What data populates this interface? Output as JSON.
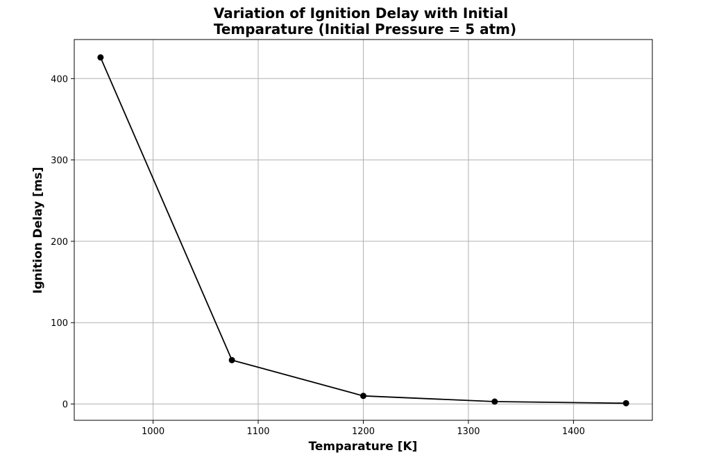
{
  "chart_data": {
    "type": "line",
    "title_lines": [
      "Variation of Ignition Delay with Initial",
      "Temparature (Initial Pressure = 5 atm)"
    ],
    "xlabel": "Temparature [K]",
    "ylabel": "Ignition Delay [ms]",
    "x": [
      950,
      1075,
      1200,
      1325,
      1450
    ],
    "y": [
      426,
      54,
      10,
      3,
      1
    ],
    "xlim": [
      925,
      1475
    ],
    "ylim": [
      -20,
      448
    ],
    "xticks": [
      1000,
      1100,
      1200,
      1300,
      1400
    ],
    "yticks": [
      0,
      100,
      200,
      300,
      400
    ],
    "grid": true,
    "line_color": "#000000",
    "marker_color": "#000000",
    "grid_color": "#b0b0b0"
  }
}
